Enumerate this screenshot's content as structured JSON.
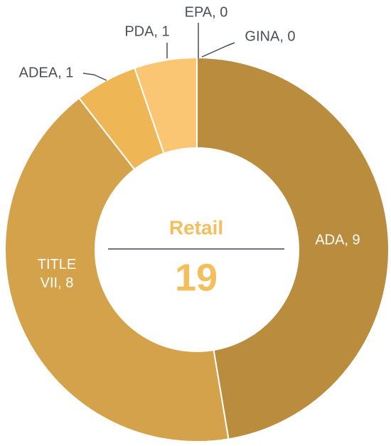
{
  "chart_data": {
    "type": "donut",
    "center_title": "Retail",
    "total": 19,
    "categories": [
      "ADA",
      "TITLE VII",
      "ADEA",
      "PDA",
      "EPA",
      "GINA"
    ],
    "values": [
      9,
      8,
      1,
      1,
      0,
      0
    ],
    "value_labels": [
      "ADA, 9",
      "TITLE VII, 8",
      "ADEA, 1",
      "PDA, 1",
      "EPA, 0",
      "GINA, 0"
    ],
    "colors": [
      "#b98c3e",
      "#d4a24b",
      "#efb655",
      "#fac673",
      "#e0b060",
      "#c9a050"
    ]
  }
}
